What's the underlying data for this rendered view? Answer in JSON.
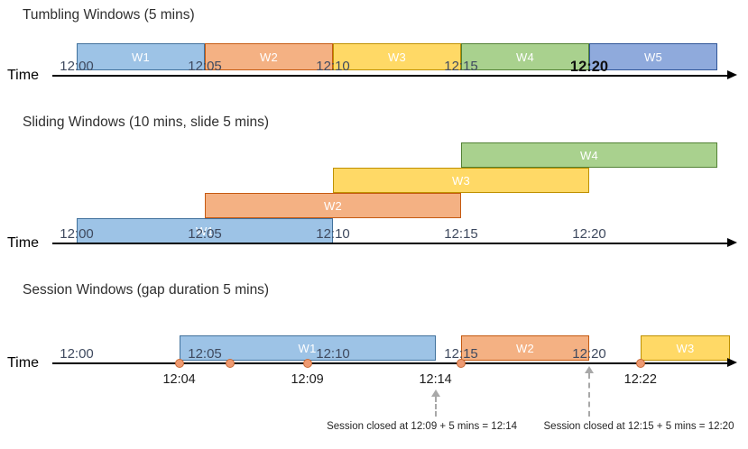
{
  "axis_label": "Time",
  "colors": {
    "blue": {
      "fill": "#9DC3E6",
      "border": "#41719C"
    },
    "orange": {
      "fill": "#F4B183",
      "border": "#C55A11"
    },
    "yellow": {
      "fill": "#FFD966",
      "border": "#BF9000"
    },
    "green": {
      "fill": "#A9D18E",
      "border": "#538135"
    },
    "indigo": {
      "fill": "#8FAADC",
      "border": "#2F5597"
    },
    "event": {
      "fill": "#EE9A72",
      "border": "#C96A35"
    }
  },
  "ticks": [
    {
      "label": "12:00",
      "t": 0
    },
    {
      "label": "12:05",
      "t": 5
    },
    {
      "label": "12:10",
      "t": 10
    },
    {
      "label": "12:15",
      "t": 15
    },
    {
      "label": "12:20",
      "t": 20
    }
  ],
  "sections": [
    {
      "id": "tumbling",
      "title": "Tumbling Windows (5 mins)",
      "emphasized_tick": "12:20",
      "windows": [
        {
          "label": "W1",
          "color": "blue",
          "start": 0,
          "end": 5
        },
        {
          "label": "W2",
          "color": "orange",
          "start": 5,
          "end": 10
        },
        {
          "label": "W3",
          "color": "yellow",
          "start": 10,
          "end": 15
        },
        {
          "label": "W4",
          "color": "green",
          "start": 15,
          "end": 20
        },
        {
          "label": "W5",
          "color": "indigo",
          "start": 20,
          "end": 25
        }
      ]
    },
    {
      "id": "sliding",
      "title": "Sliding Windows (10 mins, slide 5 mins)",
      "windows": [
        {
          "label": "W1",
          "color": "blue",
          "start": 0,
          "end": 10,
          "level": 1
        },
        {
          "label": "W2",
          "color": "orange",
          "start": 5,
          "end": 15,
          "level": 2
        },
        {
          "label": "W3",
          "color": "yellow",
          "start": 10,
          "end": 20,
          "level": 3
        },
        {
          "label": "W4",
          "color": "green",
          "start": 15,
          "end": 25,
          "level": 4
        }
      ]
    },
    {
      "id": "session",
      "title": "Session Windows (gap duration 5 mins)",
      "windows": [
        {
          "label": "W1",
          "color": "blue",
          "start": 4,
          "end": 14
        },
        {
          "label": "W2",
          "color": "orange",
          "start": 15,
          "end": 20
        },
        {
          "label": "W3",
          "color": "yellow",
          "start": 22,
          "end": 25.5
        }
      ],
      "events": [
        {
          "t": 4
        },
        {
          "t": 6
        },
        {
          "t": 9
        },
        {
          "t": 15
        },
        {
          "t": 22
        }
      ],
      "event_labels": [
        {
          "label": "12:04",
          "t": 4
        },
        {
          "label": "12:09",
          "t": 9
        },
        {
          "label": "12:14",
          "t": 14
        },
        {
          "label": "12:22",
          "t": 22
        }
      ],
      "close_arrows": [
        {
          "t": 14
        },
        {
          "t": 20
        }
      ],
      "annotations": [
        {
          "text": "Session closed at 12:09 + 5 mins = 12:14",
          "t": 14
        },
        {
          "text": "Session closed at 12:15 + 5 mins = 12:20",
          "t": 20
        }
      ]
    }
  ]
}
